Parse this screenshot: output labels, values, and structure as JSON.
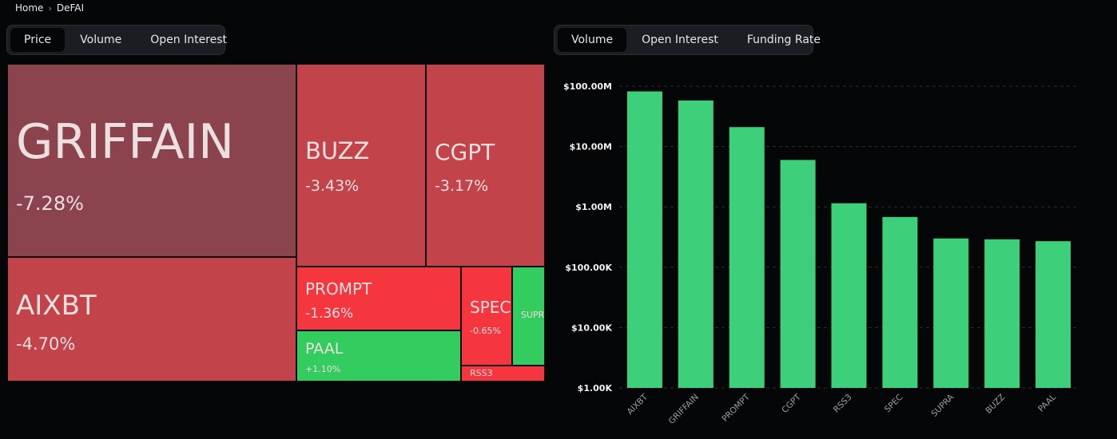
{
  "breadcrumb": {
    "home": "Home",
    "separator": "›",
    "current": "DeFAI"
  },
  "left_tabs": [
    {
      "label": "Price",
      "active": true
    },
    {
      "label": "Volume",
      "active": false
    },
    {
      "label": "Open Interest",
      "active": false
    }
  ],
  "right_tabs": [
    {
      "label": "Volume",
      "active": true
    },
    {
      "label": "Open Interest",
      "active": false
    },
    {
      "label": "Funding Rate",
      "active": false
    }
  ],
  "treemap": {
    "metric": "Price",
    "tiles": [
      {
        "symbol": "GRIFFAIN",
        "change": "-7.28%"
      },
      {
        "symbol": "AIXBT",
        "change": "-4.70%"
      },
      {
        "symbol": "BUZZ",
        "change": "-3.43%"
      },
      {
        "symbol": "CGPT",
        "change": "-3.17%"
      },
      {
        "symbol": "PROMPT",
        "change": "-1.36%"
      },
      {
        "symbol": "PAAL",
        "change": "+1.10%"
      },
      {
        "symbol": "SPEC",
        "change": "-0.65%"
      },
      {
        "symbol": "SUPRA",
        "change": ""
      },
      {
        "symbol": "RSS3",
        "change": ""
      }
    ]
  },
  "chart_data": {
    "type": "bar",
    "title": "Volume",
    "yscale": "log",
    "ylim": [
      1000,
      130000000
    ],
    "color": "#3ecf7a",
    "categories": [
      "AIXBT",
      "GRIFFAIN",
      "PROMPT",
      "CGPT",
      "RSS3",
      "SPEC",
      "SUPRA",
      "BUZZ",
      "PAAL"
    ],
    "values": [
      82000000,
      58000000,
      21000000,
      6000000,
      1150000,
      680000,
      300000,
      290000,
      270000
    ],
    "ytick_values": [
      1000,
      10000,
      100000,
      1000000,
      10000000,
      100000000
    ],
    "ytick_labels": [
      "$1.00K",
      "$10.00K",
      "$100.00K",
      "$1.00M",
      "$10.00M",
      "$100.00M"
    ]
  }
}
